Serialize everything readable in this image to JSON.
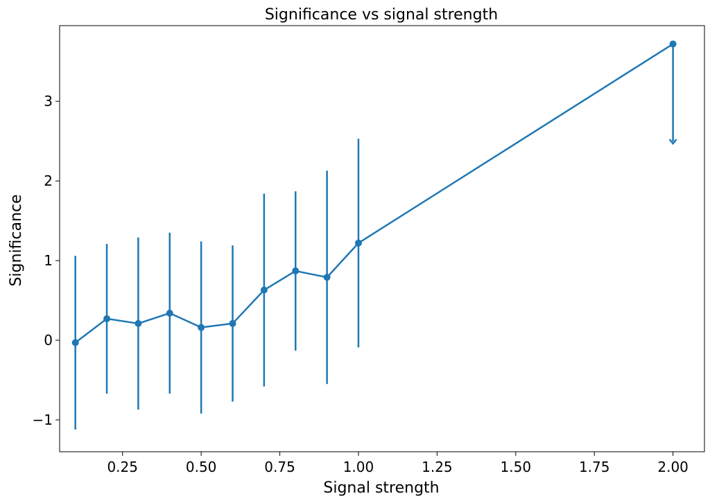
{
  "chart_data": {
    "type": "line",
    "title": "Significance vs signal strength",
    "xlabel": "Signal strength",
    "ylabel": "Significance",
    "xlim": [
      0.05,
      2.1
    ],
    "ylim": [
      -1.4,
      3.95
    ],
    "x_ticks": [
      0.25,
      0.5,
      0.75,
      1.0,
      1.25,
      1.5,
      1.75,
      2.0
    ],
    "x_tick_labels": [
      "0.25",
      "0.50",
      "0.75",
      "1.00",
      "1.25",
      "1.50",
      "1.75",
      "2.00"
    ],
    "y_ticks": [
      -1,
      0,
      1,
      2,
      3
    ],
    "y_tick_labels": [
      "−1",
      "0",
      "1",
      "2",
      "3"
    ],
    "grid": false,
    "legend": "none",
    "color": "#1f77b4",
    "series": [
      {
        "x": [
          0.1,
          0.2,
          0.3,
          0.4,
          0.5,
          0.6,
          0.7,
          0.8,
          0.9,
          1.0,
          2.0
        ],
        "y": [
          -0.03,
          0.27,
          0.21,
          0.34,
          0.16,
          0.21,
          0.63,
          0.87,
          0.79,
          1.22,
          3.72
        ],
        "yerr": [
          1.09,
          0.94,
          1.08,
          1.01,
          1.08,
          0.98,
          1.21,
          1.0,
          1.34,
          1.31,
          null
        ],
        "upper_limit": [
          false,
          false,
          false,
          false,
          false,
          false,
          false,
          false,
          false,
          false,
          true
        ]
      }
    ]
  }
}
